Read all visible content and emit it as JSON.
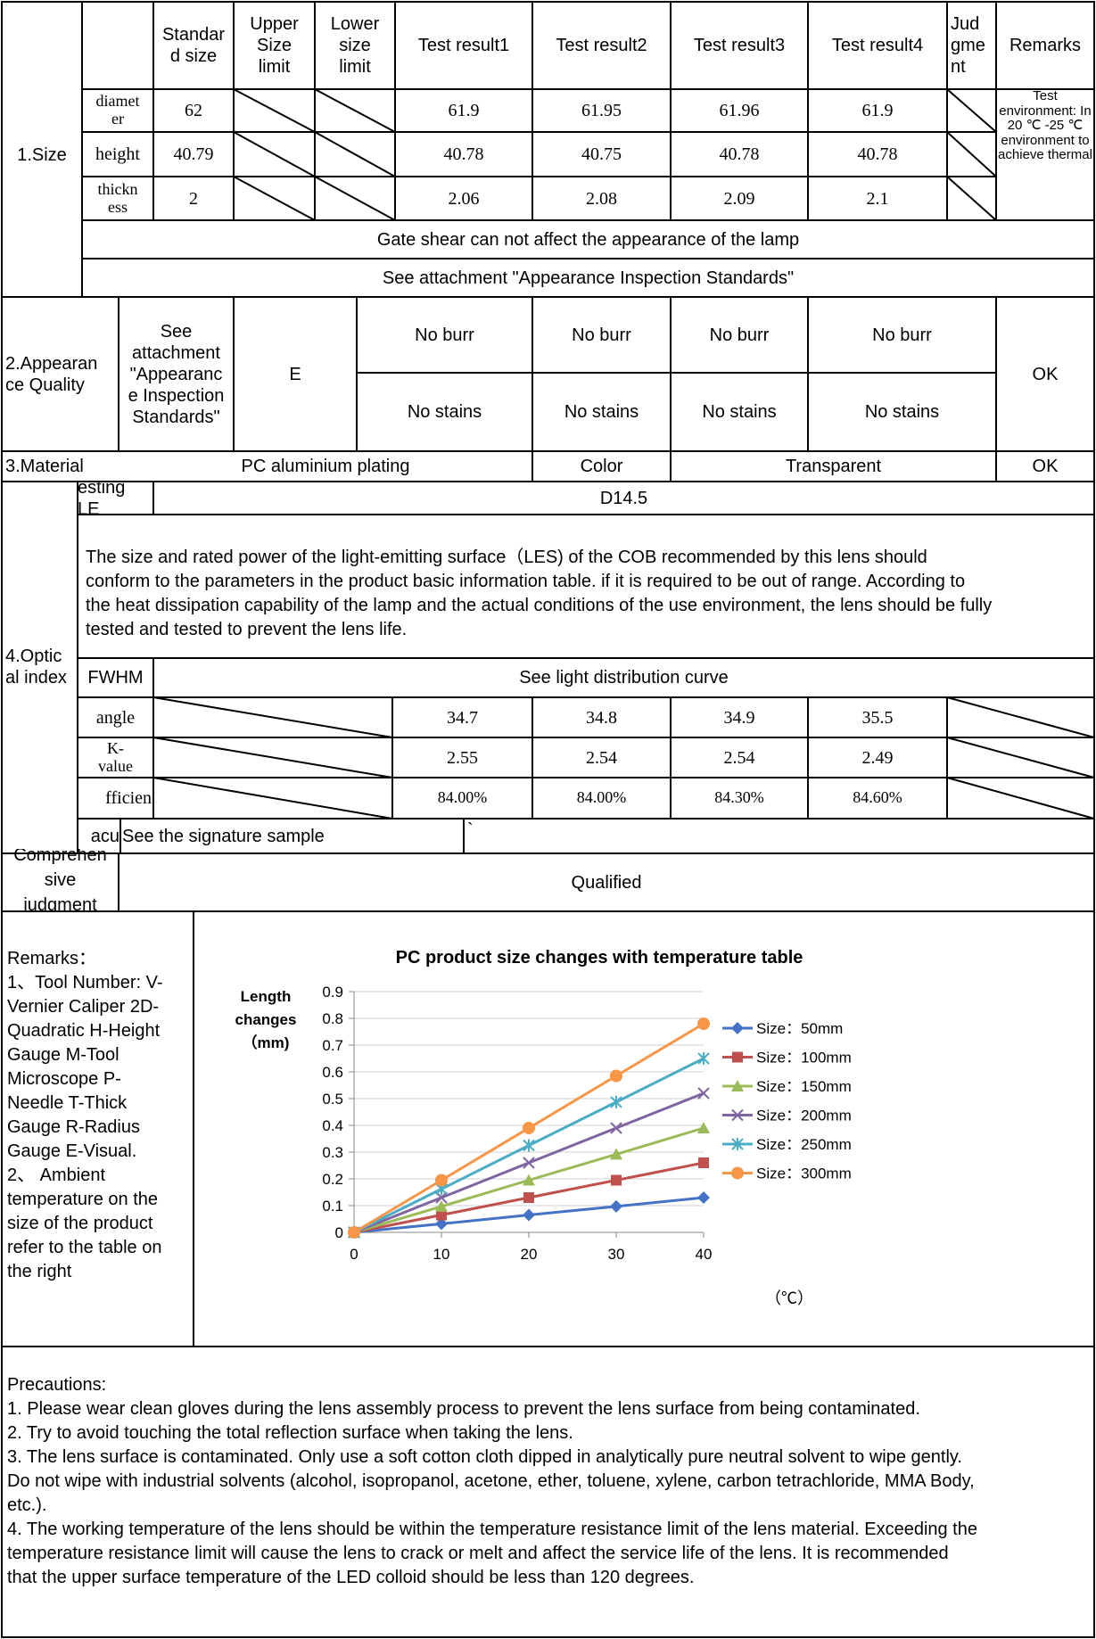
{
  "size_table": {
    "headers": {
      "standard": "Standar\nd size",
      "upper": "Upper\nSize\nlimit",
      "lower": "Lower\nsize\nlimit",
      "t1": "Test result1",
      "t2": "Test result2",
      "t3": "Test result3",
      "t4": "Test result4",
      "judgment": "Jud\ngme\nnt",
      "remarks": "Remarks"
    },
    "section": "1.Size",
    "rows": [
      {
        "item": "diamet\ner",
        "standard": "62",
        "t1": "61.9",
        "t2": "61.95",
        "t3": "61.96",
        "t4": "61.9"
      },
      {
        "item": "height",
        "standard": "40.79",
        "t1": "40.78",
        "t2": "40.75",
        "t3": "40.78",
        "t4": "40.78"
      },
      {
        "item": "thickn\ness",
        "standard": "2",
        "t1": "2.06",
        "t2": "2.08",
        "t3": "2.09",
        "t4": "2.1"
      }
    ],
    "remark_text": "Test environment: In 20 ℃ -25 ℃ environment to achieve thermal",
    "gate_note": "Gate shear can not affect the appearance of the lamp",
    "appearance_note": "See attachment \"Appearance Inspection Standards\""
  },
  "appearance": {
    "section": "2.Appearan\nce Quality",
    "standard": "See\nattachment\n\"Appearanc\ne Inspection\nStandards\"",
    "grade": "E",
    "row1": [
      "No burr",
      "No burr",
      "No burr",
      "No burr"
    ],
    "row2": [
      "No stains",
      "No stains",
      "No stains",
      "No stains"
    ],
    "judgment": "OK"
  },
  "material": {
    "section": "3.Material",
    "value": "PC aluminium plating",
    "color_label": "Color",
    "color_value": "Transparent",
    "judgment": "OK"
  },
  "optical": {
    "section": "4.Optic\nal index",
    "led_label": "esting LE",
    "led_value": "D14.5",
    "note": "The size and rated power of the light-emitting surface（LES) of the COB recommended by this lens should conform to the parameters in the product basic information table. if it is required to be out of range. According to the heat dissipation capability of the lamp and the actual conditions of the use environment, the lens should be fully tested and tested to prevent the lens life.",
    "note_lines": [
      "The size and rated power of the light-emitting surface（LES) of the COB recommended by this lens should",
      "conform to the parameters in the product basic information table. if it is required to be out of range. According to",
      "the heat dissipation capability of the lamp and the actual conditions of the use environment, the lens should be fully",
      "tested and tested to prevent the lens life."
    ],
    "fwhm_label": "FWHM",
    "fwhm_value": "See light distribution curve",
    "rows": [
      {
        "label": "angle",
        "t1": "34.7",
        "t2": "34.8",
        "t3": "34.9",
        "t4": "35.5"
      },
      {
        "label": "K-\nvalue",
        "t1": "2.55",
        "t2": "2.54",
        "t3": "2.54",
        "t4": "2.49"
      },
      {
        "label": "fficien",
        "t1": "84.00%",
        "t2": "84.00%",
        "t3": "84.30%",
        "t4": "84.60%"
      }
    ],
    "accuracy_label": "acu",
    "accuracy_value": "See the signature sample",
    "accuracy_mark": "`"
  },
  "comprehensive": {
    "label": "Comprehen\nsive\njudgment",
    "value": "Qualified"
  },
  "remarks_panel": {
    "title": "Remarks：",
    "lines": [
      "1、Tool Number: V-",
      "Vernier Caliper 2D-",
      "Quadratic H-Height",
      "Gauge M-Tool",
      "Microscope P-",
      "Needle T-Thick",
      "Gauge R-Radius",
      "Gauge E-Visual.",
      "2、 Ambient",
      "temperature on the",
      "size of the product",
      "refer to the table on",
      "the right"
    ]
  },
  "chart_data": {
    "type": "line",
    "title": "PC product size changes with temperature  table",
    "ylabel": "Length\nchanges\n（mm)",
    "xlabel": "（℃）",
    "x": [
      0,
      10,
      20,
      30,
      40
    ],
    "xticks": [
      "0",
      "10",
      "20",
      "30",
      "40"
    ],
    "yticks": [
      "0",
      "0.1",
      "0.2",
      "0.3",
      "0.4",
      "0.5",
      "0.6",
      "0.7",
      "0.8",
      "0.9"
    ],
    "ylim": [
      0,
      0.9
    ],
    "xlim": [
      0,
      40
    ],
    "grid": true,
    "legend": "right",
    "series": [
      {
        "name": "Size：50mm",
        "values": [
          0,
          0.032,
          0.065,
          0.097,
          0.13
        ],
        "color": "#4472C4",
        "marker": "diamond"
      },
      {
        "name": "Size：100mm",
        "values": [
          0,
          0.065,
          0.13,
          0.195,
          0.26
        ],
        "color": "#C0504D",
        "marker": "square"
      },
      {
        "name": "Size：150mm",
        "values": [
          0,
          0.097,
          0.195,
          0.292,
          0.39
        ],
        "color": "#9BBB59",
        "marker": "triangle"
      },
      {
        "name": "Size：200mm",
        "values": [
          0,
          0.13,
          0.26,
          0.39,
          0.52
        ],
        "color": "#8064A2",
        "marker": "x"
      },
      {
        "name": "Size：250mm",
        "values": [
          0,
          0.162,
          0.325,
          0.487,
          0.65
        ],
        "color": "#4BACC6",
        "marker": "star"
      },
      {
        "name": "Size：300mm",
        "values": [
          0,
          0.195,
          0.39,
          0.585,
          0.78
        ],
        "color": "#F79646",
        "marker": "circle"
      }
    ]
  },
  "precautions": {
    "title": "Precautions:",
    "lines": [
      "1. Please wear clean gloves during the lens assembly process to prevent the lens surface from being contaminated.",
      "2. Try to avoid touching the total reflection surface when taking the lens.",
      "3. The lens surface is contaminated. Only use a soft cotton cloth dipped in analytically pure neutral solvent to wipe gently.",
      "Do not wipe with industrial solvents (alcohol, isopropanol, acetone, ether, toluene, xylene, carbon tetrachloride, MMA Body,",
      "etc.).",
      "4. The working temperature of the lens should be within the temperature resistance limit of the lens material. Exceeding the",
      "temperature resistance limit will cause the lens to crack or melt and affect the service life of the lens. It is recommended",
      "that the upper surface temperature of the LED colloid should be less than 120 degrees."
    ]
  }
}
